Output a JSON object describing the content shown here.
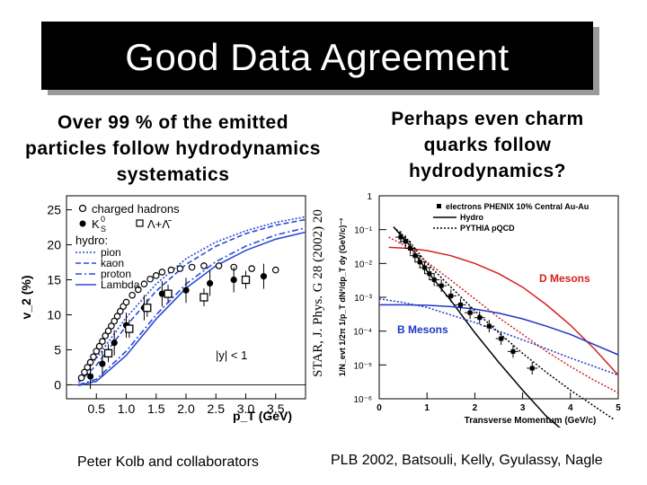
{
  "slide": {
    "title": "Good Data Agreement",
    "left_caption": [
      "Over 99 % of the emitted",
      "particles follow hydrodynamics",
      "systematics"
    ],
    "right_caption": [
      "Perhaps even charm",
      "quarks follow",
      "hydrodynamics?"
    ],
    "star_reference": "STAR, J. Phys. G 28 (2002) 20",
    "footer_left": "Peter Kolb and collaborators",
    "footer_right": "PLB 2002, Batsouli, Kelly, Gyulassy, Nagle"
  },
  "chart_data": [
    {
      "type": "scatter",
      "title": "",
      "xlabel": "p_T (GeV)",
      "ylabel": "v_2 (%)",
      "xlim": [
        0,
        4
      ],
      "ylim": [
        -2,
        27
      ],
      "x_ticks": [
        "0.5",
        "1.0",
        "1.5",
        "2.0",
        "2.5",
        "3.0",
        "3.5"
      ],
      "y_ticks": [
        "0",
        "5",
        "10",
        "15",
        "20",
        "25"
      ],
      "legend": {
        "charged": "charged hadrons",
        "ks0": "K",
        "ks0_sub": "S",
        "ks0_sup": "0",
        "lambda": "Λ+Λ̄",
        "hydro_header": "hydro:",
        "hydro_lines": [
          "pion",
          "kaon",
          "proton",
          "Lambda"
        ]
      },
      "annotation": "|y| < 1",
      "series": [
        {
          "name": "charged hadrons",
          "marker": "open-circle",
          "points": [
            [
              0.25,
              1
            ],
            [
              0.3,
              1.8
            ],
            [
              0.35,
              2.5
            ],
            [
              0.4,
              3.2
            ],
            [
              0.45,
              4.0
            ],
            [
              0.5,
              4.8
            ],
            [
              0.55,
              5.5
            ],
            [
              0.6,
              6.2
            ],
            [
              0.65,
              7.0
            ],
            [
              0.7,
              7.7
            ],
            [
              0.75,
              8.4
            ],
            [
              0.8,
              9.1
            ],
            [
              0.85,
              9.8
            ],
            [
              0.9,
              10.5
            ],
            [
              0.95,
              11.2
            ],
            [
              1.0,
              11.8
            ],
            [
              1.1,
              12.8
            ],
            [
              1.2,
              13.6
            ],
            [
              1.3,
              14.4
            ],
            [
              1.4,
              15.1
            ],
            [
              1.5,
              15.6
            ],
            [
              1.6,
              16.1
            ],
            [
              1.75,
              16.4
            ],
            [
              1.9,
              16.6
            ],
            [
              2.1,
              16.8
            ],
            [
              2.3,
              17.0
            ],
            [
              2.55,
              17.0
            ],
            [
              2.8,
              16.8
            ],
            [
              3.1,
              16.6
            ],
            [
              3.5,
              16.4
            ]
          ]
        },
        {
          "name": "K",
          "marker": "filled-circle",
          "points": [
            [
              0.4,
              1.2
            ],
            [
              0.6,
              3
            ],
            [
              0.8,
              6
            ],
            [
              1.0,
              8.5
            ],
            [
              1.3,
              11
            ],
            [
              1.6,
              13
            ],
            [
              2.0,
              13.5
            ],
            [
              2.4,
              14.5
            ],
            [
              2.8,
              15
            ],
            [
              3.3,
              15.5
            ]
          ]
        },
        {
          "name": "Λ+Λ̄",
          "marker": "open-square",
          "points": [
            [
              0.7,
              4.5
            ],
            [
              1.05,
              8
            ],
            [
              1.35,
              11
            ],
            [
              1.7,
              13
            ],
            [
              2.3,
              12.5
            ],
            [
              3.0,
              15
            ]
          ]
        },
        {
          "name": "pion",
          "style": "dotted",
          "color": "#2b4bd6",
          "points": [
            [
              0.2,
              0.6
            ],
            [
              0.5,
              3.8
            ],
            [
              1.0,
              9.6
            ],
            [
              1.5,
              14.4
            ],
            [
              2.0,
              18
            ],
            [
              2.5,
              20.4
            ],
            [
              3.0,
              22
            ],
            [
              3.5,
              23.2
            ],
            [
              4.0,
              24
            ]
          ]
        },
        {
          "name": "kaon",
          "style": "dashed",
          "color": "#2b4bd6",
          "points": [
            [
              0.2,
              0.3
            ],
            [
              0.5,
              2.8
            ],
            [
              1.0,
              8.4
            ],
            [
              1.5,
              13.4
            ],
            [
              2.0,
              17.2
            ],
            [
              2.5,
              19.8
            ],
            [
              3.0,
              21.6
            ],
            [
              3.5,
              22.8
            ],
            [
              4.0,
              23.6
            ]
          ]
        },
        {
          "name": "proton",
          "style": "dash-dot",
          "color": "#2b4bd6",
          "points": [
            [
              0.2,
              0
            ],
            [
              0.5,
              0.8
            ],
            [
              1.0,
              4.8
            ],
            [
              1.5,
              10
            ],
            [
              2.0,
              14.4
            ],
            [
              2.5,
              17.6
            ],
            [
              3.0,
              19.8
            ],
            [
              3.5,
              21.4
            ],
            [
              4.0,
              22.4
            ]
          ]
        },
        {
          "name": "Lambda",
          "style": "solid",
          "color": "#2b4bd6",
          "points": [
            [
              0.2,
              -0.1
            ],
            [
              0.5,
              0.5
            ],
            [
              1.0,
              4.2
            ],
            [
              1.5,
              9.4
            ],
            [
              2.0,
              13.8
            ],
            [
              2.5,
              17
            ],
            [
              3.0,
              19.2
            ],
            [
              3.5,
              20.8
            ],
            [
              4.0,
              21.8
            ]
          ]
        }
      ]
    },
    {
      "type": "line",
      "title": "",
      "xlabel": "Transverse Momentum (GeV/c)",
      "ylabel": "1/N_evt 1/2π 1/p_T dN²/dp_T dy (GeV/c)⁻²",
      "xlim": [
        0,
        5
      ],
      "ylim_log10": [
        -6,
        0
      ],
      "log_y": true,
      "x_ticks": [
        "0",
        "1",
        "2",
        "3",
        "4",
        "5"
      ],
      "y_ticks": [
        "1",
        "10⁻¹",
        "10⁻²",
        "10⁻³",
        "10⁻⁴",
        "10⁻⁵",
        "10⁻⁶"
      ],
      "legend": {
        "data": "electrons PHENIX 10% Central Au-Au",
        "hydro": "Hydro",
        "pythia": "PYTHIA pQCD"
      },
      "labels": {
        "d_mesons": "D Mesons",
        "b_mesons": "B Mesons"
      },
      "series": [
        {
          "name": "electrons PHENIX 10% Central Au-Au",
          "marker": "filled-square",
          "points": [
            [
              0.45,
              0.06
            ],
            [
              0.55,
              0.045
            ],
            [
              0.65,
              0.028
            ],
            [
              0.75,
              0.017
            ],
            [
              0.85,
              0.011
            ],
            [
              0.95,
              0.0075
            ],
            [
              1.05,
              0.005
            ],
            [
              1.15,
              0.0033
            ],
            [
              1.3,
              0.0022
            ],
            [
              1.5,
              0.0011
            ],
            [
              1.7,
              0.0006
            ],
            [
              1.9,
              0.00035
            ],
            [
              2.1,
              0.00025
            ],
            [
              2.3,
              0.00014
            ],
            [
              2.55,
              6e-05
            ],
            [
              2.8,
              2.5e-05
            ],
            [
              3.2,
              8e-06
            ]
          ]
        },
        {
          "name": "Hydro",
          "style": "solid",
          "color": "#000000",
          "points": [
            [
              0.3,
              0.12
            ],
            [
              0.6,
              0.04
            ],
            [
              1.0,
              0.006
            ],
            [
              1.5,
              0.0008
            ],
            [
              2.0,
              9e-05
            ],
            [
              2.5,
              1.2e-05
            ],
            [
              3.0,
              1.8e-06
            ],
            [
              3.5,
              3e-07
            ],
            [
              3.9,
              1e-07
            ]
          ]
        },
        {
          "name": "PYTHIA pQCD",
          "style": "dotted",
          "color": "#000000",
          "points": [
            [
              0.3,
              0.12
            ],
            [
              0.6,
              0.05
            ],
            [
              1.0,
              0.01
            ],
            [
              1.5,
              0.002
            ],
            [
              2.0,
              0.0004
            ],
            [
              2.5,
              9e-05
            ],
            [
              3.0,
              2.2e-05
            ],
            [
              3.5,
              6e-06
            ],
            [
              4.0,
              1.8e-06
            ],
            [
              4.5,
              6e-07
            ],
            [
              4.9,
              2.5e-07
            ]
          ]
        },
        {
          "name": "D Mesons",
          "style": "solid",
          "color": "#d61f1f",
          "points": [
            [
              0.2,
              0.03
            ],
            [
              0.6,
              0.028
            ],
            [
              1.0,
              0.024
            ],
            [
              1.5,
              0.017
            ],
            [
              2.0,
              0.01
            ],
            [
              2.5,
              0.005
            ],
            [
              3.0,
              0.002
            ],
            [
              3.5,
              0.0006
            ],
            [
              4.0,
              0.00015
            ],
            [
              4.5,
              3e-05
            ],
            [
              5.0,
              5e-06
            ]
          ]
        },
        {
          "name": "D Mesons (pQCD)",
          "style": "dotted",
          "color": "#d61f1f",
          "points": [
            [
              0.2,
              0.06
            ],
            [
              0.6,
              0.03
            ],
            [
              1.0,
              0.011
            ],
            [
              1.5,
              0.0032
            ],
            [
              2.0,
              0.0009
            ],
            [
              2.5,
              0.00025
            ],
            [
              3.0,
              8e-05
            ],
            [
              3.5,
              2.5e-05
            ],
            [
              4.0,
              9e-06
            ],
            [
              4.5,
              3.5e-06
            ],
            [
              5.0,
              1.5e-06
            ]
          ]
        },
        {
          "name": "B Mesons",
          "style": "solid",
          "color": "#1f36c8",
          "points": [
            [
              0.0,
              0.0006
            ],
            [
              0.5,
              0.0006
            ],
            [
              1.0,
              0.00058
            ],
            [
              1.5,
              0.00053
            ],
            [
              2.0,
              0.00045
            ],
            [
              2.5,
              0.00034
            ],
            [
              3.0,
              0.00023
            ],
            [
              3.5,
              0.00014
            ],
            [
              4.0,
              8e-05
            ],
            [
              4.5,
              4e-05
            ],
            [
              5.0,
              2e-05
            ]
          ]
        },
        {
          "name": "B Mesons (pQCD)",
          "style": "dotted",
          "color": "#1f36c8",
          "points": [
            [
              0.0,
              0.0009
            ],
            [
              0.5,
              0.0007
            ],
            [
              1.0,
              0.0005
            ],
            [
              1.5,
              0.0003
            ],
            [
              2.0,
              0.00018
            ],
            [
              2.5,
              0.0001
            ],
            [
              3.0,
              5.5e-05
            ],
            [
              3.5,
              3e-05
            ],
            [
              4.0,
              1.6e-05
            ],
            [
              4.5,
              9e-06
            ],
            [
              5.0,
              5e-06
            ]
          ]
        }
      ]
    }
  ]
}
